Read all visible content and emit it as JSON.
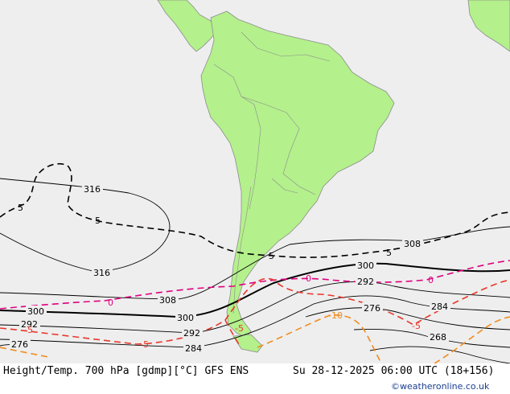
{
  "footer": {
    "title": "Height/Temp. 700 hPa [gdmp][°C] GFS ENS",
    "datetime": "Su 28-12-2025 06:00 UTC (18+156)",
    "credit": "©weatheronline.co.uk"
  },
  "colors": {
    "ocean": "#eeeeee",
    "land": "#b4f08c",
    "border": "#8c8c8c",
    "height": "#000000",
    "temp_0": "#e0007f",
    "temp_minus5": "#e8382c",
    "temp_minus10": "#f08c1e",
    "temp_5": "#000000"
  },
  "height_labels": {
    "l316a": "316",
    "l316b": "316",
    "l308a": "308",
    "l308b": "308",
    "l300a": "300",
    "l300b": "300",
    "l300c": "300",
    "l292a": "292",
    "l292b": "292",
    "l292c": "292",
    "l284a": "284",
    "l284b": "284",
    "l276a": "276",
    "l276b": "276",
    "l268": "268"
  },
  "temp_labels": {
    "t5a": "5",
    "t5b": "5",
    "t5c": "5",
    "t5d": "5",
    "t0a": "0",
    "t0b": "0",
    "t0c": "0",
    "tm5a": "-5",
    "tm5b": "-5",
    "tm5c": "-5",
    "tm5d": "-5",
    "tm10": "-10"
  }
}
